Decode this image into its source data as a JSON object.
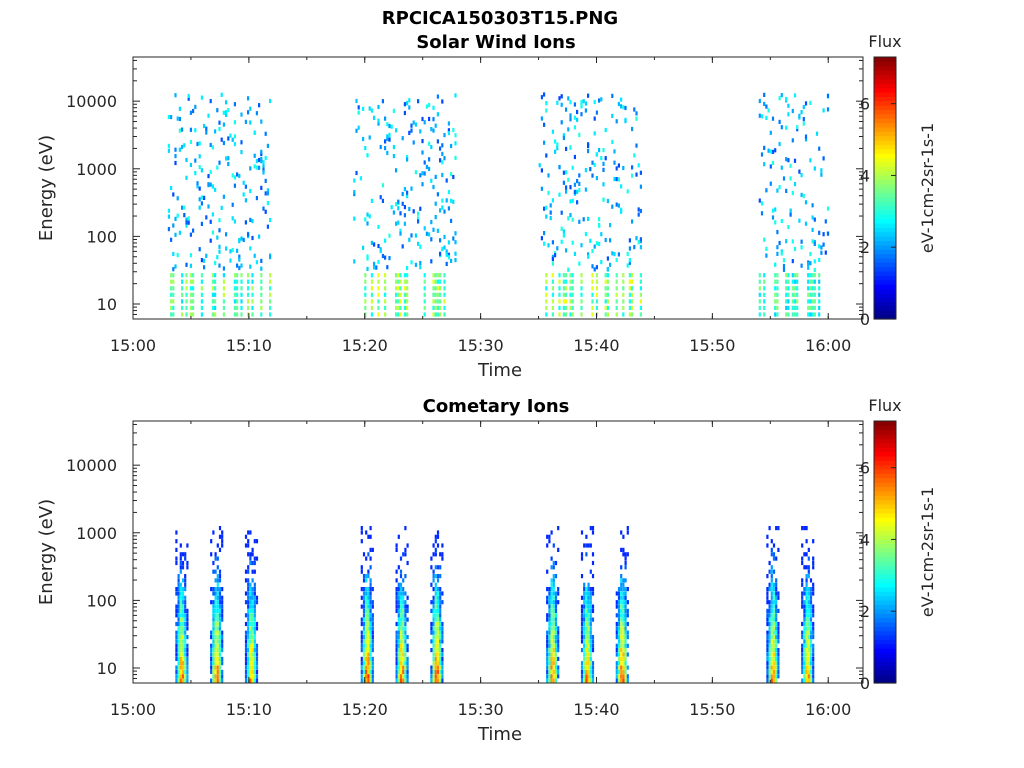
{
  "figure": {
    "title": "RPCICA150303T15.PNG"
  },
  "chart_data": [
    {
      "type": "heatmap",
      "title": "Solar Wind Ions",
      "xlabel": "Time",
      "ylabel": "Energy (eV)",
      "y_scale": "log",
      "xlim": [
        "15:00",
        "16:03"
      ],
      "ylim": [
        6,
        45000
      ],
      "x_ticks": [
        "15:00",
        "15:10",
        "15:20",
        "15:30",
        "15:40",
        "15:50",
        "16:00"
      ],
      "y_ticks": [
        "10",
        "100",
        "1000",
        "10000"
      ],
      "colorbar": {
        "title": "Flux",
        "label": "eV-1cm-2sr-1s-1",
        "range": [
          0,
          7.3
        ],
        "ticks": [
          "0",
          "2",
          "4",
          "6"
        ],
        "colormap": "jet"
      },
      "bursts": [
        {
          "start": "15:03",
          "end": "15:12",
          "peak_flux": 4.2
        },
        {
          "start": "15:19",
          "end": "15:28",
          "peak_flux": 4.5
        },
        {
          "start": "15:35",
          "end": "15:44",
          "peak_flux": 4.5
        },
        {
          "start": "15:54",
          "end": "16:00",
          "peak_flux": 3.8
        }
      ]
    },
    {
      "type": "heatmap",
      "title": "Cometary Ions",
      "xlabel": "Time",
      "ylabel": "Energy (eV)",
      "y_scale": "log",
      "xlim": [
        "15:00",
        "16:03"
      ],
      "ylim": [
        6,
        45000
      ],
      "x_ticks": [
        "15:00",
        "15:10",
        "15:20",
        "15:30",
        "15:40",
        "15:50",
        "16:00"
      ],
      "y_ticks": [
        "10",
        "100",
        "1000",
        "10000"
      ],
      "colorbar": {
        "title": "Flux",
        "label": "eV-1cm-2sr-1s-1",
        "range": [
          0,
          7.3
        ],
        "ticks": [
          "0",
          "2",
          "4",
          "6"
        ],
        "colormap": "jet"
      },
      "bursts": [
        {
          "start": "15:04",
          "end": "15:05",
          "peak_flux": 6.3
        },
        {
          "start": "15:07",
          "end": "15:08",
          "peak_flux": 6.3
        },
        {
          "start": "15:10",
          "end": "15:11",
          "peak_flux": 6.0
        },
        {
          "start": "15:20",
          "end": "15:21",
          "peak_flux": 6.6
        },
        {
          "start": "15:23",
          "end": "15:24",
          "peak_flux": 6.3
        },
        {
          "start": "15:26",
          "end": "15:27",
          "peak_flux": 6.6
        },
        {
          "start": "15:36",
          "end": "15:37",
          "peak_flux": 6.3
        },
        {
          "start": "15:39",
          "end": "15:40",
          "peak_flux": 6.3
        },
        {
          "start": "15:42",
          "end": "15:43",
          "peak_flux": 6.6
        },
        {
          "start": "15:55",
          "end": "15:56",
          "peak_flux": 6.3
        },
        {
          "start": "15:58",
          "end": "15:59",
          "peak_flux": 6.0
        }
      ]
    }
  ]
}
